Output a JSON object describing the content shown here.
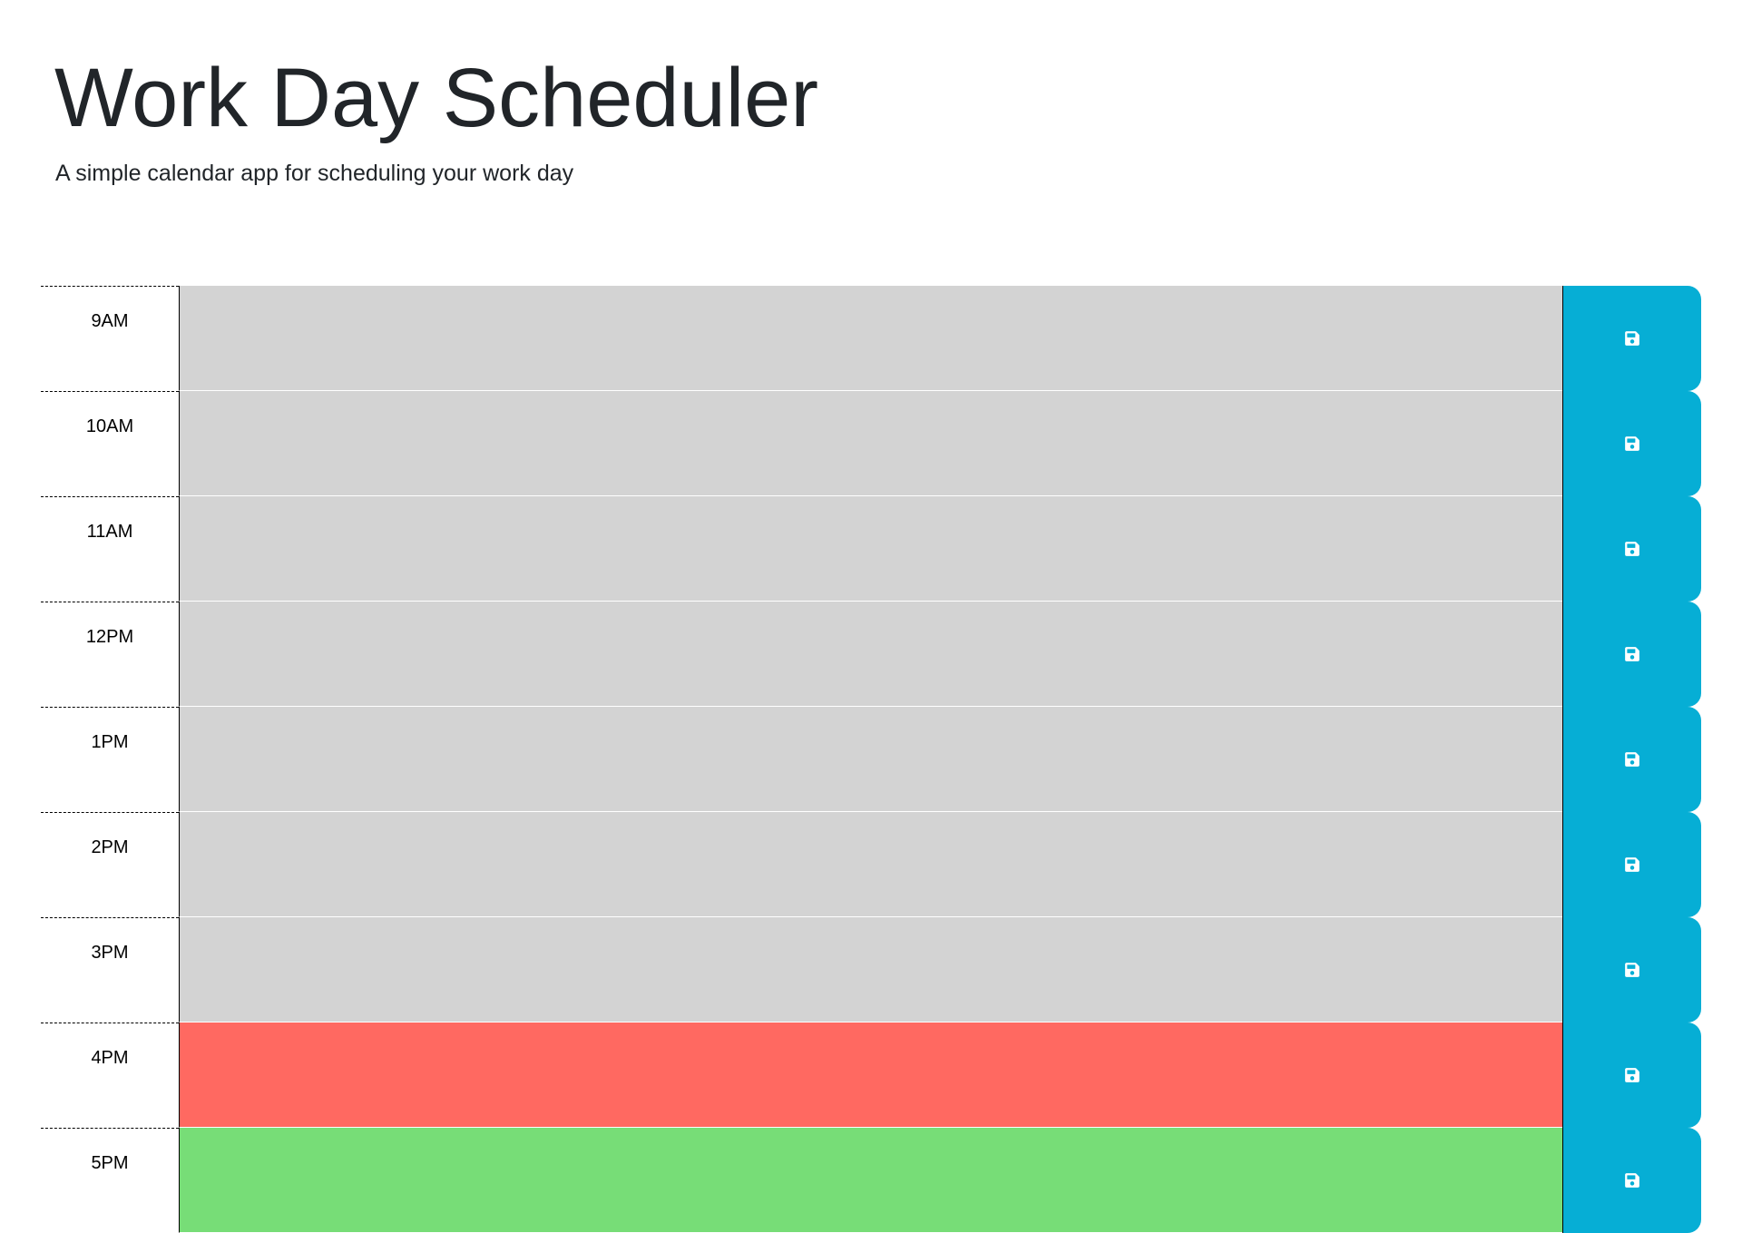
{
  "header": {
    "title": "Work Day Scheduler",
    "subtitle": "A simple calendar app for scheduling your work day"
  },
  "colors": {
    "past": "#d3d3d3",
    "present": "#ff6961",
    "future": "#77dd77",
    "save_button": "#06aed5"
  },
  "rows": [
    {
      "hour": "9AM",
      "state": "past",
      "text": "",
      "save_icon": "save-icon"
    },
    {
      "hour": "10AM",
      "state": "past",
      "text": "",
      "save_icon": "save-icon"
    },
    {
      "hour": "11AM",
      "state": "past",
      "text": "",
      "save_icon": "save-icon"
    },
    {
      "hour": "12PM",
      "state": "past",
      "text": "",
      "save_icon": "save-icon"
    },
    {
      "hour": "1PM",
      "state": "past",
      "text": "",
      "save_icon": "save-icon"
    },
    {
      "hour": "2PM",
      "state": "past",
      "text": "",
      "save_icon": "save-icon"
    },
    {
      "hour": "3PM",
      "state": "past",
      "text": "",
      "save_icon": "save-icon"
    },
    {
      "hour": "4PM",
      "state": "present",
      "text": "",
      "save_icon": "save-icon"
    },
    {
      "hour": "5PM",
      "state": "future",
      "text": "",
      "save_icon": "save-icon"
    }
  ]
}
